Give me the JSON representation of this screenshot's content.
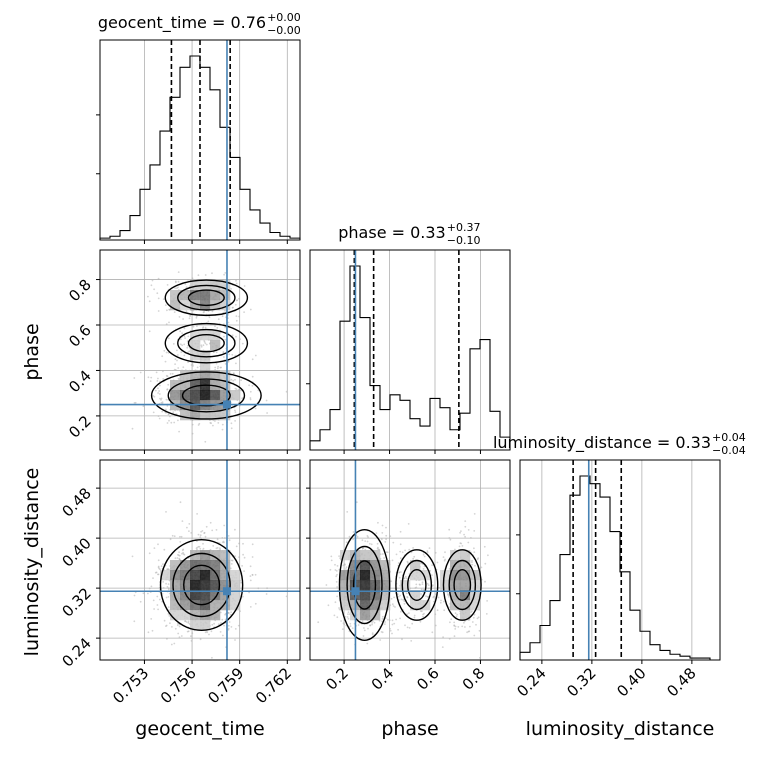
{
  "chart_data": {
    "type": "corner",
    "parameters": [
      "geocent_time",
      "phase",
      "luminosity_distance"
    ],
    "axis_labels": {
      "geocent_time": "geocent_time",
      "phase": "phase",
      "luminosity_distance": "luminosity_distance"
    },
    "ranges": {
      "geocent_time": [
        0.7502,
        0.7628
      ],
      "phase": [
        0.05,
        0.93
      ],
      "luminosity_distance": [
        0.205,
        0.525
      ]
    },
    "ticks": {
      "geocent_time": [
        "0.753",
        "0.756",
        "0.759",
        "0.762"
      ],
      "phase": [
        "0.2",
        "0.4",
        "0.6",
        "0.8"
      ],
      "luminosity_distance": [
        "0.24",
        "0.32",
        "0.40",
        "0.48"
      ]
    },
    "tick_values": {
      "geocent_time": [
        0.753,
        0.756,
        0.759,
        0.762
      ],
      "phase": [
        0.2,
        0.4,
        0.6,
        0.8
      ],
      "luminosity_distance": [
        0.24,
        0.32,
        0.4,
        0.48
      ]
    },
    "truths": {
      "geocent_time": 0.7582,
      "phase": 0.25,
      "luminosity_distance": 0.315
    },
    "quantiles": {
      "geocent_time": [
        0.7547,
        0.7565,
        0.7584
      ],
      "phase": [
        0.245,
        0.33,
        0.705
      ],
      "luminosity_distance": [
        0.29,
        0.326,
        0.367
      ]
    },
    "titles": {
      "geocent_time": {
        "text": "geocent_time = 0.76",
        "plus": "+0.00",
        "minus": "−0.00"
      },
      "phase": {
        "text": "phase = 0.33",
        "plus": "+0.37",
        "minus": "−0.10"
      },
      "luminosity_distance": {
        "text": "luminosity_distance = 0.33",
        "plus": "+0.04",
        "minus": "−0.04"
      }
    },
    "histograms": {
      "geocent_time": [
        0.01,
        0.02,
        0.05,
        0.13,
        0.27,
        0.4,
        0.58,
        0.76,
        0.92,
        0.98,
        0.92,
        0.8,
        0.6,
        0.44,
        0.27,
        0.16,
        0.09,
        0.04,
        0.02,
        0.01
      ],
      "phase": [
        0.05,
        0.11,
        0.22,
        0.7,
        1.0,
        0.72,
        0.35,
        0.22,
        0.3,
        0.27,
        0.17,
        0.13,
        0.28,
        0.23,
        0.11,
        0.2,
        0.55,
        0.6,
        0.21,
        0.07
      ],
      "luminosity_distance": [
        0.04,
        0.09,
        0.18,
        0.31,
        0.55,
        0.86,
        0.96,
        0.92,
        0.85,
        0.67,
        0.46,
        0.26,
        0.15,
        0.08,
        0.05,
        0.03,
        0.02,
        0.01,
        0.01,
        0.0
      ]
    },
    "grid": true,
    "truth_color": "#4682b4",
    "point_color": "#b0b0b0",
    "contour_color": "#000000"
  }
}
